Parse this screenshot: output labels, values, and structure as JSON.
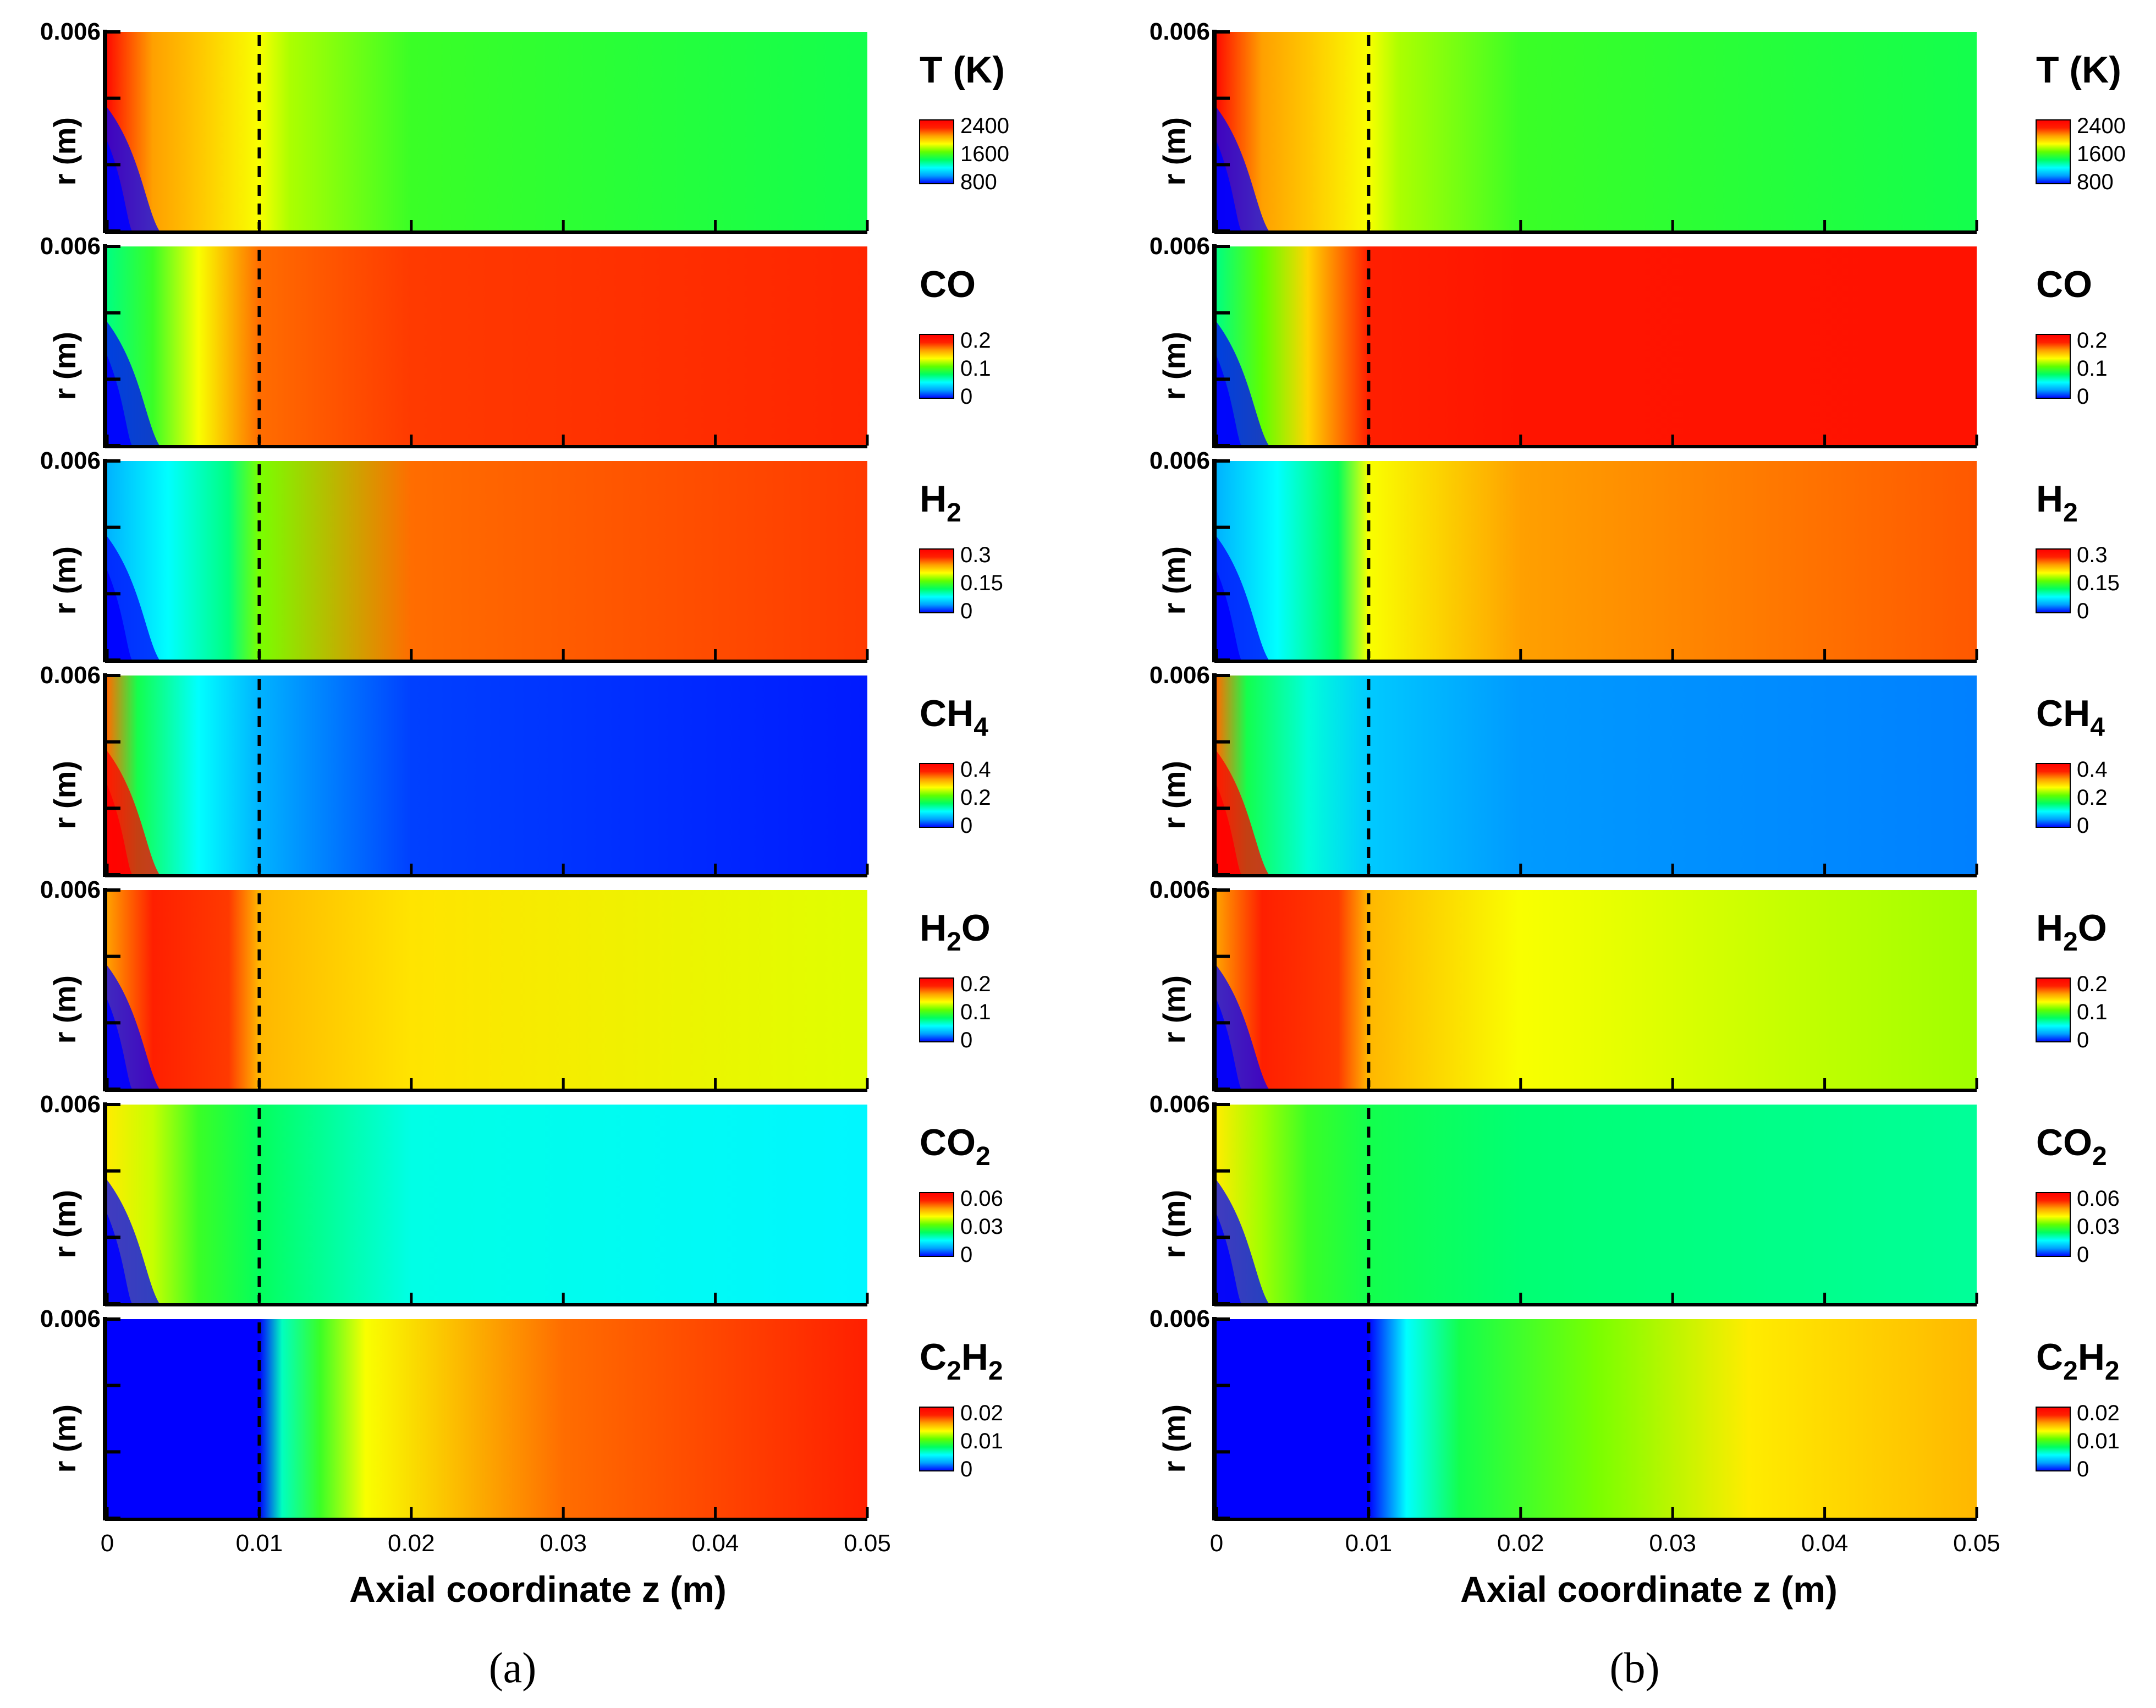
{
  "figure": {
    "y_top_tick_label": "0.006",
    "y_axis_label": "r (m)",
    "x_axis_title": "Axial coordinate z (m)",
    "x_ticks": [
      "0",
      "0.01",
      "0.02",
      "0.03",
      "0.04",
      "0.05"
    ],
    "marker_line_z": 0.01
  },
  "panels": [
    {
      "id": "a",
      "label": "(a)"
    },
    {
      "id": "b",
      "label": "(b)"
    }
  ],
  "legends": [
    {
      "name": "T",
      "unit": "(K)",
      "sub": "",
      "suffix": "",
      "ticks": [
        "2400",
        "1600",
        "800"
      ]
    },
    {
      "name": "CO",
      "unit": "",
      "sub": "",
      "suffix": "",
      "ticks": [
        "0.2",
        "0.1",
        "0"
      ]
    },
    {
      "name": "H",
      "unit": "",
      "sub": "2",
      "suffix": "",
      "ticks": [
        "0.3",
        "0.15",
        "0"
      ]
    },
    {
      "name": "CH",
      "unit": "",
      "sub": "4",
      "suffix": "",
      "ticks": [
        "0.4",
        "0.2",
        "0"
      ]
    },
    {
      "name": "H",
      "unit": "",
      "sub": "2",
      "suffix": "O",
      "ticks": [
        "0.2",
        "0.1",
        "0"
      ]
    },
    {
      "name": "CO",
      "unit": "",
      "sub": "2",
      "suffix": "",
      "ticks": [
        "0.06",
        "0.03",
        "0"
      ]
    },
    {
      "name": "C",
      "unit": "",
      "sub": "2",
      "suffix": "H₂",
      "ticks": [
        "0.02",
        "0.01",
        "0"
      ]
    }
  ],
  "colors": {
    "rainbow": [
      "#0000ff",
      "#00a0ff",
      "#00ffff",
      "#00ff60",
      "#60ff00",
      "#ffff00",
      "#ffa000",
      "#ff2000",
      "#ff0000"
    ]
  },
  "chart_data": {
    "type": "heatmap",
    "title": "",
    "xlabel": "Axial coordinate z (m)",
    "ylabel": "r (m)",
    "xlim": [
      0,
      0.05
    ],
    "ylim": [
      0,
      0.006
    ],
    "colorscale": "rainbow (blue-cyan-green-yellow-red)",
    "panels": [
      {
        "panel": "a",
        "fields": [
          {
            "quantity": "T (K)",
            "range": [
              800,
              2400
            ],
            "profile_z": [
              0,
              0.003,
              0.006,
              0.01,
              0.012,
              0.02,
              0.05
            ],
            "profile_norm": [
              0.95,
              0.75,
              0.7,
              0.62,
              0.56,
              0.45,
              0.4
            ],
            "near_axis_min": 0.0
          },
          {
            "quantity": "CO",
            "range": [
              0,
              0.2
            ],
            "profile_z": [
              0,
              0.003,
              0.006,
              0.01,
              0.02,
              0.05
            ],
            "profile_norm": [
              0.35,
              0.45,
              0.62,
              0.8,
              0.85,
              0.87
            ],
            "near_axis_min": 0.0
          },
          {
            "quantity": "H2",
            "range": [
              0,
              0.3
            ],
            "profile_z": [
              0,
              0.004,
              0.008,
              0.01,
              0.02,
              0.05
            ],
            "profile_norm": [
              0.15,
              0.25,
              0.35,
              0.52,
              0.8,
              0.85
            ],
            "near_axis_min": 0.0
          },
          {
            "quantity": "CH4",
            "range": [
              0,
              0.4
            ],
            "profile_z": [
              0,
              0.002,
              0.006,
              0.01,
              0.02,
              0.05
            ],
            "profile_norm": [
              0.8,
              0.4,
              0.25,
              0.15,
              0.05,
              0.02
            ],
            "near_axis_min": 1.0
          },
          {
            "quantity": "H2O",
            "range": [
              0,
              0.2
            ],
            "profile_z": [
              0,
              0.003,
              0.008,
              0.01,
              0.02,
              0.05
            ],
            "profile_norm": [
              0.75,
              0.88,
              0.85,
              0.72,
              0.66,
              0.6
            ],
            "near_axis_min": 0.0
          },
          {
            "quantity": "CO2",
            "range": [
              0,
              0.06
            ],
            "profile_z": [
              0,
              0.003,
              0.006,
              0.01,
              0.02,
              0.05
            ],
            "profile_norm": [
              0.65,
              0.58,
              0.45,
              0.38,
              0.27,
              0.24
            ],
            "near_axis_min": 0.0
          },
          {
            "quantity": "C2H2",
            "range": [
              0,
              0.02
            ],
            "profile_z": [
              0,
              0.01,
              0.0115,
              0.014,
              0.017,
              0.03,
              0.05
            ],
            "profile_norm": [
              0.0,
              0.0,
              0.3,
              0.45,
              0.62,
              0.8,
              0.88
            ],
            "near_axis_min": 0.0
          }
        ]
      },
      {
        "panel": "b",
        "fields": [
          {
            "quantity": "T (K)",
            "range": [
              800,
              2400
            ],
            "profile_z": [
              0,
              0.003,
              0.006,
              0.01,
              0.012,
              0.02,
              0.05
            ],
            "profile_norm": [
              0.95,
              0.75,
              0.7,
              0.62,
              0.56,
              0.45,
              0.4
            ],
            "near_axis_min": 0.0
          },
          {
            "quantity": "CO",
            "range": [
              0,
              0.2
            ],
            "profile_z": [
              0,
              0.003,
              0.006,
              0.01,
              0.02,
              0.05
            ],
            "profile_norm": [
              0.35,
              0.5,
              0.68,
              0.88,
              0.92,
              0.93
            ],
            "near_axis_min": 0.0
          },
          {
            "quantity": "H2",
            "range": [
              0,
              0.3
            ],
            "profile_z": [
              0,
              0.004,
              0.008,
              0.01,
              0.02,
              0.05
            ],
            "profile_norm": [
              0.15,
              0.25,
              0.38,
              0.62,
              0.75,
              0.82
            ],
            "near_axis_min": 0.0
          },
          {
            "quantity": "CH4",
            "range": [
              0,
              0.4
            ],
            "profile_z": [
              0,
              0.002,
              0.006,
              0.01,
              0.02,
              0.05
            ],
            "profile_norm": [
              0.8,
              0.4,
              0.28,
              0.18,
              0.12,
              0.1
            ],
            "near_axis_min": 1.0
          },
          {
            "quantity": "H2O",
            "range": [
              0,
              0.2
            ],
            "profile_z": [
              0,
              0.003,
              0.008,
              0.01,
              0.02,
              0.05
            ],
            "profile_norm": [
              0.75,
              0.88,
              0.85,
              0.72,
              0.62,
              0.55
            ],
            "near_axis_min": 0.0
          },
          {
            "quantity": "CO2",
            "range": [
              0,
              0.06
            ],
            "profile_z": [
              0,
              0.003,
              0.006,
              0.01,
              0.02,
              0.05
            ],
            "profile_norm": [
              0.65,
              0.55,
              0.45,
              0.4,
              0.36,
              0.33
            ],
            "near_axis_min": 0.0
          },
          {
            "quantity": "C2H2",
            "range": [
              0,
              0.02
            ],
            "profile_z": [
              0,
              0.01,
              0.0125,
              0.016,
              0.025,
              0.035,
              0.05
            ],
            "profile_norm": [
              0.0,
              0.0,
              0.25,
              0.4,
              0.52,
              0.65,
              0.72
            ],
            "near_axis_min": 0.0
          }
        ]
      }
    ]
  }
}
